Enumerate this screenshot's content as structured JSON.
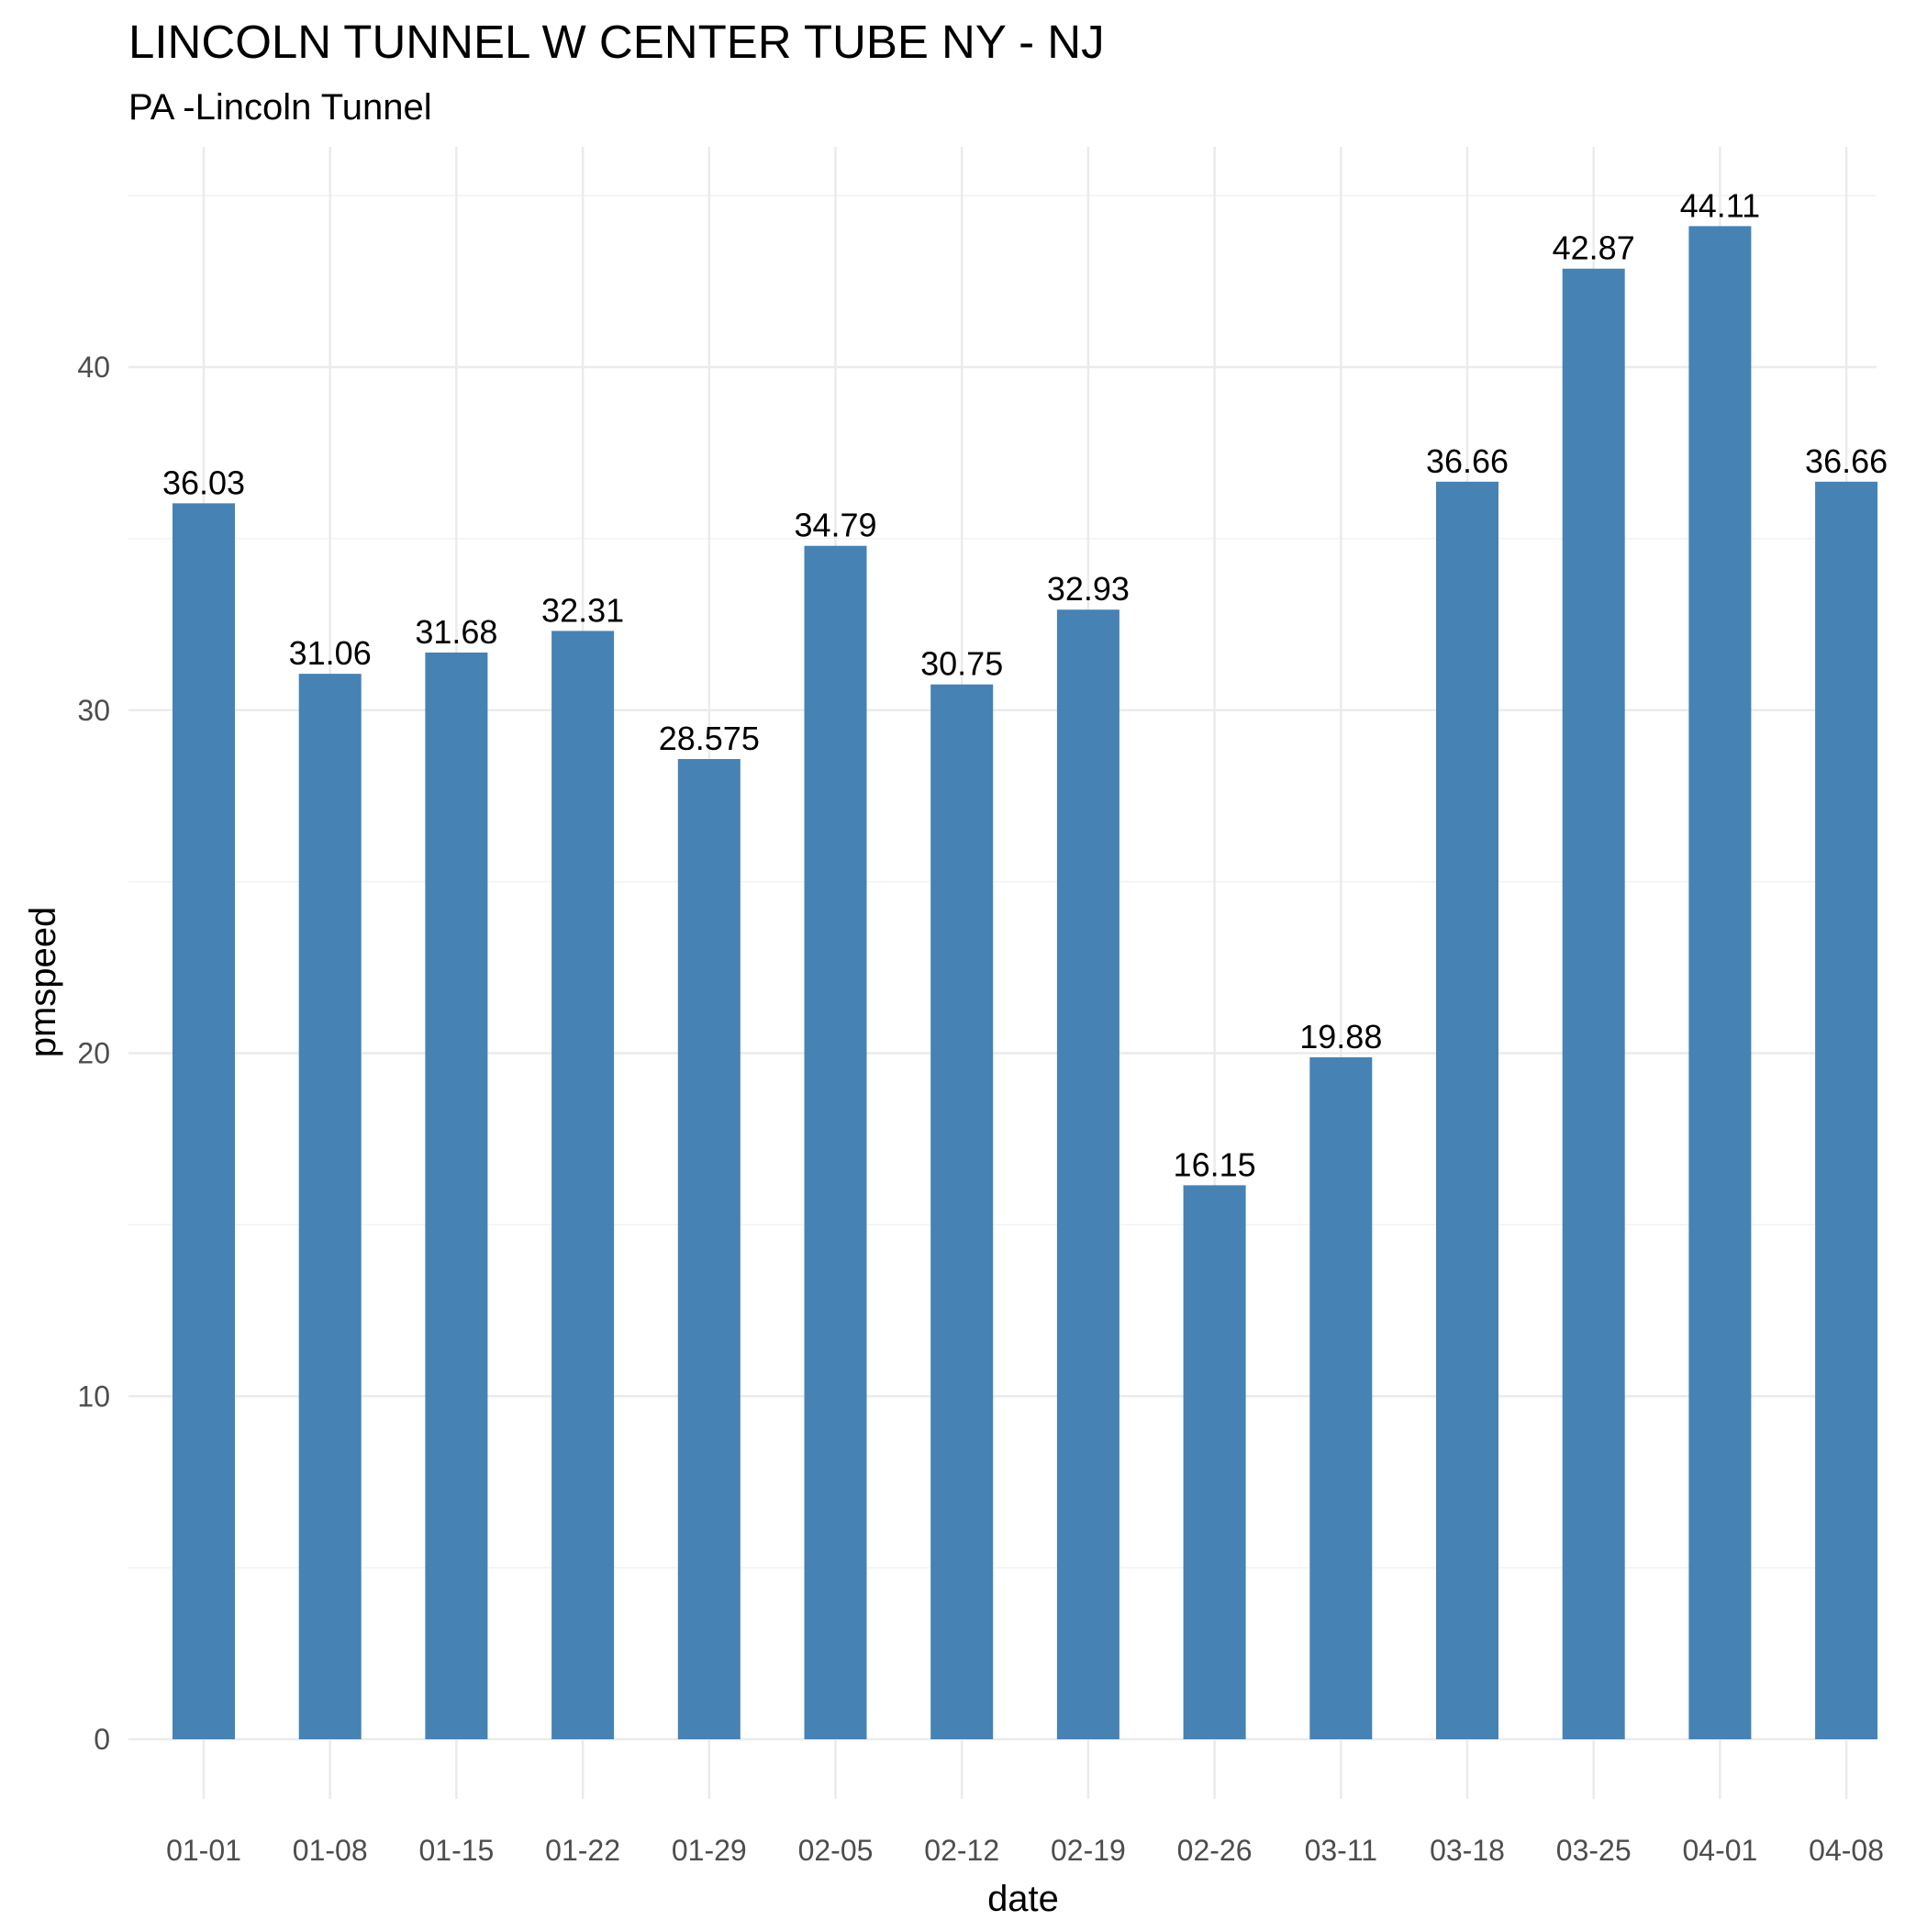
{
  "chart_data": {
    "type": "bar",
    "title": "LINCOLN TUNNEL W CENTER TUBE NY - NJ",
    "subtitle": "PA -Lincoln Tunnel",
    "xlabel": "date",
    "ylabel": "pmspeed",
    "categories": [
      "01-01",
      "01-08",
      "01-15",
      "01-22",
      "01-29",
      "02-05",
      "02-12",
      "02-19",
      "02-26",
      "03-11",
      "03-18",
      "03-25",
      "04-01",
      "04-08"
    ],
    "values": [
      36.03,
      31.06,
      31.68,
      32.31,
      28.575,
      34.79,
      30.75,
      32.93,
      16.15,
      19.88,
      36.66,
      42.87,
      44.11,
      36.66
    ],
    "data_labels": [
      "36.03",
      "31.06",
      "31.68",
      "32.31",
      "28.575",
      "34.79",
      "30.75",
      "32.93",
      "16.15",
      "19.88",
      "36.66",
      "42.87",
      "44.11",
      "36.66"
    ],
    "ylim": [
      0,
      45
    ],
    "y_ticks": [
      0,
      10,
      20,
      30,
      40
    ],
    "y_tick_labels": [
      "0",
      "10",
      "20",
      "30",
      "40"
    ],
    "grid": true,
    "legend": "none",
    "bar_color": "#4682b4"
  }
}
